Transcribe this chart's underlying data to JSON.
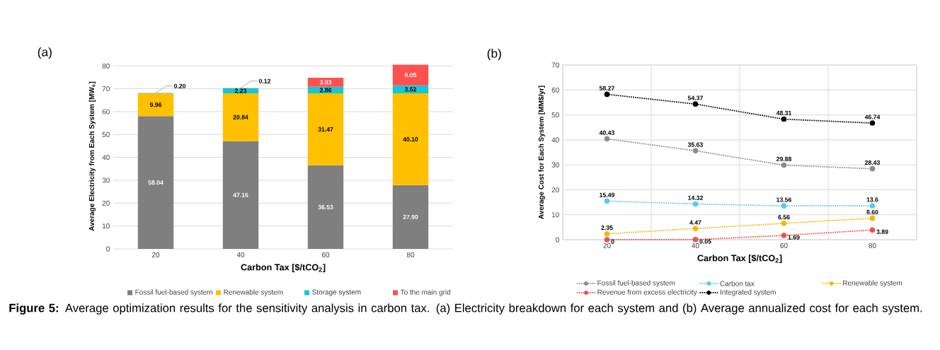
{
  "chart_data": [
    {
      "type": "bar",
      "title": "(a)",
      "xlabel": "Carbon Tax [$/tCO$_{2}$]",
      "ylabel": "Average Electricity from Each System [MW$_{e}$]",
      "categories": [
        "20",
        "40",
        "60",
        "80"
      ],
      "stacked": true,
      "ylim": [
        0,
        81
      ],
      "yticks": [
        0,
        10,
        20,
        30,
        40,
        50,
        60,
        70,
        80
      ],
      "grid": "y",
      "legend": "bottom",
      "series": [
        {
          "name": "Fossil fuel-based system",
          "color": "#7f7f7f",
          "values": [
            58.04,
            47.16,
            36.53,
            27.9
          ],
          "value_labels": [
            "58.04",
            "47.16",
            "36.53",
            "27.90"
          ]
        },
        {
          "name": "Renewable system",
          "color": "#ffc000",
          "values": [
            9.96,
            20.84,
            31.47,
            40.1
          ],
          "value_labels": [
            "9.96",
            "20.84",
            "31.47",
            "40.10"
          ]
        },
        {
          "name": "Storage system",
          "color": "#17c7d2",
          "values": [
            0.2,
            2.23,
            2.86,
            3.52
          ],
          "value_labels": [
            "0.20",
            "2.23",
            "2.86",
            "3.52"
          ]
        },
        {
          "name": "To the main grid",
          "color": "#ff5050",
          "values": [
            null,
            0.12,
            3.93,
            9.05
          ],
          "value_labels": [
            null,
            "0.12",
            "3.93",
            "9.05"
          ]
        }
      ],
      "annotations": [
        "**Figure 5:** Average optimization results for the sensitivity analysis in carbon tax. (a) Electricity breakdown for each system and (b) Average annualized cost for each system."
      ]
    },
    {
      "type": "line",
      "title": "(b)",
      "xlabel": "Carbon Tax [$/tCO$_{2}$]",
      "ylabel": "Average Cost for Each System [MM$/yr]",
      "categories": [
        "20",
        "40",
        "60",
        "80"
      ],
      "ylim": [
        0,
        70
      ],
      "yticks": [
        0,
        10,
        20,
        30,
        40,
        50,
        60,
        70
      ],
      "grid": true,
      "legend": "bottom",
      "marker": "circle",
      "line_style": "dotted",
      "series": [
        {
          "name": "Fossil fuel-based system",
          "color": "#8c8c8c",
          "values": [
            40.43,
            35.63,
            29.88,
            28.43
          ],
          "value_labels": [
            "40.43",
            "35.63",
            "29.88",
            "28.43"
          ]
        },
        {
          "name": "Carbon tax",
          "color": "#5ac8f5",
          "values": [
            15.49,
            14.32,
            13.56,
            13.6
          ],
          "value_labels": [
            "15.49",
            "14.32",
            "13.56",
            "13.6"
          ]
        },
        {
          "name": "Renewable system",
          "color": "#f5b800",
          "values": [
            2.35,
            4.47,
            6.56,
            8.6
          ],
          "value_labels": [
            "2.35",
            "4.47",
            "6.56",
            "8.60"
          ]
        },
        {
          "name": "Revenue from excess electricity",
          "color": "#f05050",
          "values": [
            0,
            0.05,
            1.69,
            3.89
          ],
          "value_labels": [
            "0",
            "0.05",
            "1.69",
            "3.89"
          ]
        },
        {
          "name": "Integrated system",
          "color": "#000000",
          "values": [
            58.27,
            54.37,
            48.31,
            46.74
          ],
          "value_labels": [
            "58.27",
            "54.37",
            "48.31",
            "46.74"
          ]
        }
      ]
    }
  ]
}
